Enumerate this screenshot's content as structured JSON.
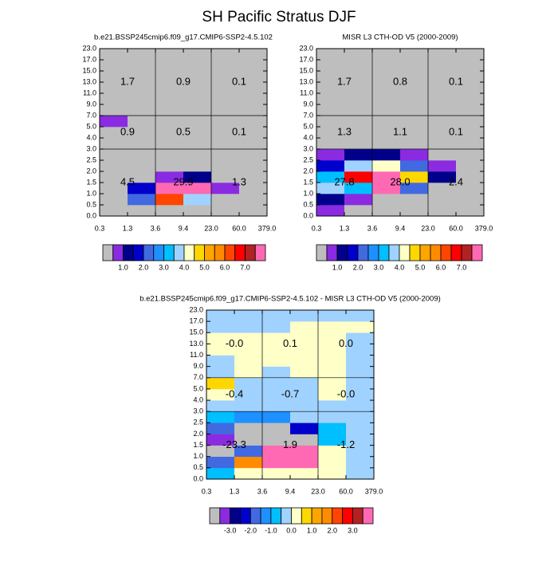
{
  "title": "SH Pacific Stratus DJF",
  "chart_data": [
    {
      "type": "heatmap",
      "title": "b.e21.BSSP245cmip6.f09_g17.CMIP6-SSP2-4.5.102",
      "x_edges": [
        "0.3",
        "1.3",
        "3.6",
        "9.4",
        "23.0",
        "60.0",
        "379.0"
      ],
      "y_edges": [
        "0.0",
        "0.5",
        "1.0",
        "1.5",
        "2.0",
        "2.5",
        "3.0",
        "4.0",
        "5.0",
        "7.0",
        "9.0",
        "11.0",
        "13.0",
        "15.0",
        "17.0",
        "23.0"
      ],
      "z": [
        [
          0.2,
          0.2,
          0.2,
          0.2,
          0.2,
          0.2
        ],
        [
          0.2,
          2.2,
          6.2,
          3.7,
          0.2,
          0.2
        ],
        [
          0.2,
          1.7,
          9,
          9,
          0.7,
          0.2
        ],
        [
          0.2,
          0.2,
          0.7,
          1.2,
          0.2,
          0.2
        ],
        [
          0.2,
          0.2,
          0.2,
          0.2,
          0.2,
          0.2
        ],
        [
          0.2,
          0.2,
          0.2,
          0.2,
          0.2,
          0.2
        ],
        [
          0.2,
          0.2,
          0.2,
          0.2,
          0.2,
          0.2
        ],
        [
          0.2,
          0.2,
          0.2,
          0.2,
          0.2,
          0.2
        ],
        [
          0.7,
          0.2,
          0.2,
          0.2,
          0.2,
          0.2
        ],
        [
          0.2,
          0.2,
          0.2,
          0.2,
          0.2,
          0.2
        ],
        [
          0.2,
          0.2,
          0.2,
          0.2,
          0.2,
          0.2
        ],
        [
          0.2,
          0.2,
          0.2,
          0.2,
          0.2,
          0.2
        ],
        [
          0.2,
          0.2,
          0.2,
          0.2,
          0.2,
          0.2
        ],
        [
          0.2,
          0.2,
          0.2,
          0.2,
          0.2,
          0.2
        ],
        [
          0.2,
          0.2,
          0.2,
          0.2,
          0.2,
          0.2
        ]
      ],
      "block_labels": [
        [
          1.7,
          0.9,
          0.1
        ],
        [
          0.9,
          0.5,
          0.1
        ],
        [
          4.5,
          29.9,
          1.3
        ]
      ],
      "levels": [
        0.5,
        1,
        1.5,
        2,
        2.5,
        3,
        3.5,
        4,
        4.5,
        5,
        5.5,
        6,
        6.5,
        7,
        7.5
      ],
      "colors": [
        "#bebebe",
        "#8a2be2",
        "#00008b",
        "#0000cd",
        "#4169e1",
        "#1e90ff",
        "#00bfff",
        "#a0d2ff",
        "#ffffc8",
        "#ffd700",
        "#ffa500",
        "#ff8c00",
        "#ff4500",
        "#ff0000",
        "#b22222",
        "#ff69b4"
      ],
      "colorbar_ticks": [
        {
          "value": 1,
          "label": "1.0"
        },
        {
          "value": 2,
          "label": "2.0"
        },
        {
          "value": 3,
          "label": "3.0"
        },
        {
          "value": 4,
          "label": "4.0"
        },
        {
          "value": 5,
          "label": "5.0"
        },
        {
          "value": 6,
          "label": "6.0"
        },
        {
          "value": 7,
          "label": "7.0"
        }
      ]
    },
    {
      "type": "heatmap",
      "title": "MISR L3 CTH-OD V5 (2000-2009)",
      "x_edges": [
        "0.3",
        "1.3",
        "3.6",
        "9.4",
        "23.0",
        "60.0",
        "379.0"
      ],
      "y_edges": [
        "0.0",
        "0.5",
        "1.0",
        "1.5",
        "2.0",
        "2.5",
        "3.0",
        "4.0",
        "5.0",
        "7.0",
        "9.0",
        "11.0",
        "13.0",
        "15.0",
        "17.0",
        "23.0"
      ],
      "z": [
        [
          0.7,
          0.2,
          0.2,
          0.2,
          0.2,
          0.2
        ],
        [
          1.2,
          0.7,
          0.2,
          0.2,
          0.2,
          0.2
        ],
        [
          3.7,
          3.2,
          9,
          2.2,
          0.2,
          0.2
        ],
        [
          3.2,
          6.7,
          9,
          4.7,
          1.2,
          0.2
        ],
        [
          1.7,
          3.7,
          4.2,
          2.2,
          0.7,
          0.2
        ],
        [
          0.7,
          1.2,
          1.2,
          0.7,
          0.2,
          0.2
        ],
        [
          0.2,
          0.2,
          0.2,
          0.2,
          0.2,
          0.2
        ],
        [
          0.2,
          0.2,
          0.2,
          0.2,
          0.2,
          0.2
        ],
        [
          0.2,
          0.2,
          0.2,
          0.2,
          0.2,
          0.2
        ],
        [
          0.2,
          0.2,
          0.2,
          0.2,
          0.2,
          0.2
        ],
        [
          0.2,
          0.2,
          0.2,
          0.2,
          0.2,
          0.2
        ],
        [
          0.2,
          0.2,
          0.2,
          0.2,
          0.2,
          0.2
        ],
        [
          0.2,
          0.2,
          0.2,
          0.2,
          0.2,
          0.2
        ],
        [
          0.2,
          0.2,
          0.2,
          0.2,
          0.2,
          0.2
        ],
        [
          0.2,
          0.2,
          0.2,
          0.2,
          0.2,
          0.2
        ]
      ],
      "block_labels": [
        [
          1.7,
          0.8,
          0.1
        ],
        [
          1.3,
          1.1,
          0.1
        ],
        [
          27.8,
          {
            "value": 28,
            "label": "28.0"
          },
          2.4
        ]
      ],
      "levels": [
        0.5,
        1,
        1.5,
        2,
        2.5,
        3,
        3.5,
        4,
        4.5,
        5,
        5.5,
        6,
        6.5,
        7,
        7.5
      ],
      "colors": [
        "#bebebe",
        "#8a2be2",
        "#00008b",
        "#0000cd",
        "#4169e1",
        "#1e90ff",
        "#00bfff",
        "#a0d2ff",
        "#ffffc8",
        "#ffd700",
        "#ffa500",
        "#ff8c00",
        "#ff4500",
        "#ff0000",
        "#b22222",
        "#ff69b4"
      ],
      "colorbar_ticks": [
        {
          "value": 1,
          "label": "1.0"
        },
        {
          "value": 2,
          "label": "2.0"
        },
        {
          "value": 3,
          "label": "3.0"
        },
        {
          "value": 4,
          "label": "4.0"
        },
        {
          "value": 5,
          "label": "5.0"
        },
        {
          "value": 6,
          "label": "6.0"
        },
        {
          "value": 7,
          "label": "7.0"
        }
      ]
    },
    {
      "type": "heatmap",
      "title": "b.e21.BSSP245cmip6.f09_g17.CMIP6-SSP2-4.5.102 - MISR L3 CTH-OD V5 (2000-2009)",
      "x_edges": [
        "0.3",
        "1.3",
        "3.6",
        "9.4",
        "23.0",
        "60.0",
        "379.0"
      ],
      "y_edges": [
        "0.0",
        "0.5",
        "1.0",
        "1.5",
        "2.0",
        "2.5",
        "3.0",
        "4.0",
        "5.0",
        "7.0",
        "9.0",
        "11.0",
        "13.0",
        "15.0",
        "17.0",
        "23.0"
      ],
      "z": [
        [
          -0.7,
          0.2,
          0.2,
          0.2,
          0.2,
          -0.2
        ],
        [
          -1.7,
          1.7,
          4,
          4,
          0.2,
          -0.2
        ],
        [
          -4,
          -1.7,
          4,
          4,
          0.2,
          -0.2
        ],
        [
          -3.2,
          -4,
          -4,
          -4,
          -0.7,
          -0.2
        ],
        [
          -1.7,
          -4,
          -4,
          -2.2,
          -0.7,
          -0.2
        ],
        [
          -0.7,
          -1.2,
          -1.2,
          -0.2,
          -0.2,
          -0.2
        ],
        [
          -0.2,
          -0.2,
          -0.2,
          -0.2,
          -0.2,
          -0.2
        ],
        [
          0.2,
          -0.2,
          -0.2,
          -0.2,
          0.2,
          -0.2
        ],
        [
          0.7,
          -0.2,
          -0.2,
          -0.2,
          0.2,
          -0.2
        ],
        [
          -0.2,
          0.2,
          -0.2,
          0.2,
          0.2,
          -0.2
        ],
        [
          -0.2,
          0.2,
          0.2,
          0.2,
          0.2,
          -0.2
        ],
        [
          0.2,
          0.2,
          0.2,
          0.2,
          0.2,
          -0.2
        ],
        [
          0.2,
          0.2,
          0.2,
          0.2,
          0.2,
          -0.2
        ],
        [
          -0.2,
          -0.2,
          -0.2,
          0.2,
          0.2,
          0.2
        ],
        [
          -0.2,
          -0.2,
          -0.2,
          -0.2,
          -0.2,
          -0.2
        ]
      ],
      "block_labels": [
        [
          {
            "value": 0,
            "label": "-0.0"
          },
          0.1,
          {
            "value": 0,
            "label": "0.0"
          }
        ],
        [
          -0.4,
          -0.7,
          {
            "value": 0,
            "label": "-0.0"
          }
        ],
        [
          -23.3,
          1.9,
          -1.2
        ]
      ],
      "levels": [
        -3.5,
        -3,
        -2.5,
        -2,
        -1.5,
        -1,
        -0.5,
        0,
        0.5,
        1,
        1.5,
        2,
        2.5,
        3,
        3.5
      ],
      "colors": [
        "#bebebe",
        "#8a2be2",
        "#00008b",
        "#0000cd",
        "#4169e1",
        "#1e90ff",
        "#00bfff",
        "#a0d2ff",
        "#ffffc8",
        "#ffd700",
        "#ffa500",
        "#ff8c00",
        "#ff4500",
        "#ff0000",
        "#b22222",
        "#ff69b4"
      ],
      "colorbar_ticks": [
        {
          "value": -3,
          "label": "-3.0"
        },
        {
          "value": -2,
          "label": "-2.0"
        },
        {
          "value": -1,
          "label": "-1.0"
        },
        {
          "value": 0,
          "label": "0.0"
        },
        {
          "value": 1,
          "label": "1.0"
        },
        {
          "value": 2,
          "label": "2.0"
        },
        {
          "value": 3,
          "label": "3.0"
        }
      ]
    }
  ]
}
